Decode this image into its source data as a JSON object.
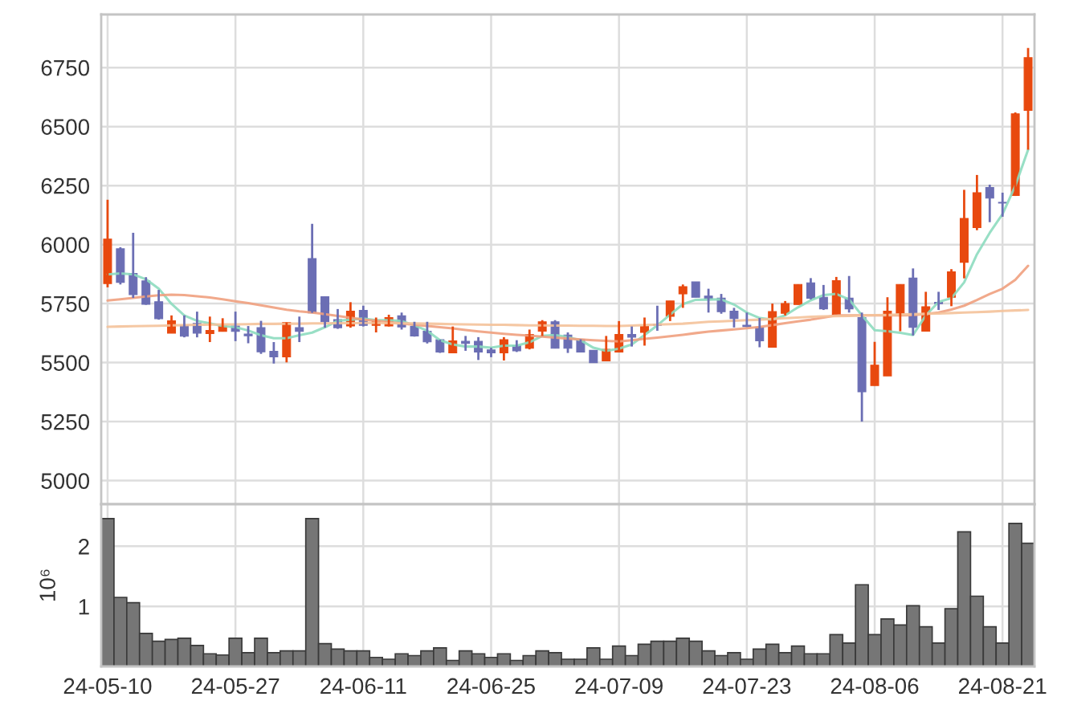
{
  "chart_data": [
    {
      "type": "candlestick",
      "categories": [
        null,
        null,
        null,
        null,
        null,
        null,
        null,
        null,
        null,
        null,
        null,
        null,
        null,
        null,
        null,
        null,
        null,
        null,
        null,
        null,
        null,
        null,
        null,
        null,
        null,
        null,
        null,
        null,
        null,
        null,
        null,
        null,
        null,
        null,
        null,
        null,
        null,
        null,
        null,
        null,
        null,
        null,
        null,
        null,
        null,
        null,
        null,
        null,
        null,
        null,
        null,
        null,
        null,
        null,
        null,
        null,
        null,
        null,
        null,
        null,
        null,
        null,
        null,
        null,
        null,
        null,
        null,
        null,
        null,
        null,
        null,
        null,
        null
      ],
      "ohlc": [
        [
          5835,
          6190,
          5819,
          6023
        ],
        [
          5982,
          5989,
          5831,
          5840
        ],
        [
          5878,
          6050,
          5774,
          5788
        ],
        [
          5846,
          5862,
          5745,
          5747
        ],
        [
          5758,
          5808,
          5682,
          5686
        ],
        [
          5625,
          5700,
          5625,
          5677
        ],
        [
          5657,
          5700,
          5607,
          5612
        ],
        [
          5666,
          5716,
          5607,
          5625
        ],
        [
          5623,
          5695,
          5587,
          5636
        ],
        [
          5632,
          5688,
          5632,
          5657
        ],
        [
          5655,
          5716,
          5591,
          5632
        ],
        [
          5621,
          5655,
          5582,
          5614
        ],
        [
          5648,
          5677,
          5537,
          5546
        ],
        [
          5548,
          5587,
          5496,
          5524
        ],
        [
          5524,
          5670,
          5501,
          5670
        ],
        [
          5648,
          5695,
          5587,
          5632
        ],
        [
          5941,
          6088,
          5711,
          5711
        ],
        [
          5779,
          5779,
          5648,
          5673
        ],
        [
          5682,
          5727,
          5643,
          5648
        ],
        [
          5655,
          5756,
          5648,
          5718
        ],
        [
          5721,
          5741,
          5653,
          5658
        ],
        [
          5658,
          5691,
          5628,
          5676
        ],
        [
          5655,
          5703,
          5653,
          5691
        ],
        [
          5698,
          5712,
          5640,
          5651
        ],
        [
          5653,
          5673,
          5610,
          5613
        ],
        [
          5633,
          5673,
          5581,
          5588
        ],
        [
          5597,
          5597,
          5541,
          5545
        ],
        [
          5541,
          5653,
          5541,
          5592
        ],
        [
          5590,
          5613,
          5550,
          5581
        ],
        [
          5590,
          5608,
          5511,
          5545
        ],
        [
          5554,
          5563,
          5523,
          5541
        ],
        [
          5541,
          5608,
          5509,
          5597
        ],
        [
          5572,
          5595,
          5545,
          5550
        ],
        [
          5561,
          5640,
          5556,
          5619
        ],
        [
          5633,
          5680,
          5613,
          5673
        ],
        [
          5673,
          5680,
          5561,
          5561
        ],
        [
          5617,
          5628,
          5541,
          5561
        ],
        [
          5599,
          5599,
          5545,
          5545
        ],
        [
          5552,
          5552,
          5500,
          5500
        ],
        [
          5507,
          5613,
          5507,
          5556
        ],
        [
          5545,
          5676,
          5545,
          5619
        ],
        [
          5619,
          5653,
          5568,
          5608
        ],
        [
          5628,
          5691,
          5572,
          5653
        ],
        [
          5662,
          5741,
          5635,
          5658
        ],
        [
          5696,
          5761,
          5676,
          5761
        ],
        [
          5791,
          5831,
          5732,
          5822
        ],
        [
          5842,
          5842,
          5777,
          5777
        ],
        [
          5782,
          5813,
          5712,
          5770
        ],
        [
          5773,
          5791,
          5707,
          5716
        ],
        [
          5718,
          5732,
          5649,
          5687
        ],
        [
          5658,
          5712,
          5651,
          5653
        ],
        [
          5649,
          5689,
          5565,
          5592
        ],
        [
          5565,
          5750,
          5565,
          5716
        ],
        [
          5709,
          5761,
          5700,
          5750
        ],
        [
          5746,
          5831,
          5746,
          5831
        ],
        [
          5838,
          5858,
          5768,
          5773
        ],
        [
          5777,
          5829,
          5723,
          5728
        ],
        [
          5705,
          5863,
          5705,
          5847
        ],
        [
          5773,
          5867,
          5712,
          5728
        ],
        [
          5691,
          5712,
          5250,
          5376
        ],
        [
          5403,
          5588,
          5403,
          5489
        ],
        [
          5444,
          5777,
          5444,
          5718
        ],
        [
          5709,
          5831,
          5633,
          5831
        ],
        [
          5858,
          5899,
          5615,
          5649
        ],
        [
          5633,
          5800,
          5633,
          5737
        ],
        [
          5755,
          5800,
          5723,
          5750
        ],
        [
          5777,
          5896,
          5739,
          5885
        ],
        [
          5925,
          6232,
          5857,
          6111
        ],
        [
          6072,
          6295,
          6061,
          6220
        ],
        [
          6242,
          6254,
          6095,
          6197
        ],
        [
          6179,
          6220,
          6118,
          6176
        ],
        [
          6208,
          6560,
          6206,
          6554
        ],
        [
          6569,
          6833,
          6402,
          6792
        ]
      ],
      "colors": [
        "#e8490f",
        "#6b6eb4",
        "#6b6eb4",
        "#6b6eb4",
        "#6b6eb4",
        "#e8490f",
        "#6b6eb4",
        "#6b6eb4",
        "#e8490f",
        "#e8490f",
        "#6b6eb4",
        "#6b6eb4",
        "#6b6eb4",
        "#6b6eb4",
        "#e8490f",
        "#6b6eb4",
        "#6b6eb4",
        "#6b6eb4",
        "#6b6eb4",
        "#e8490f",
        "#6b6eb4",
        "#e8490f",
        "#e8490f",
        "#6b6eb4",
        "#6b6eb4",
        "#6b6eb4",
        "#6b6eb4",
        "#e8490f",
        "#6b6eb4",
        "#6b6eb4",
        "#6b6eb4",
        "#e8490f",
        "#6b6eb4",
        "#e8490f",
        "#e8490f",
        "#6b6eb4",
        "#6b6eb4",
        "#6b6eb4",
        "#6b6eb4",
        "#e8490f",
        "#e8490f",
        "#6b6eb4",
        "#e8490f",
        "#6b6eb4",
        "#e8490f",
        "#e8490f",
        "#6b6eb4",
        "#6b6eb4",
        "#6b6eb4",
        "#6b6eb4",
        "#6b6eb4",
        "#6b6eb4",
        "#e8490f",
        "#e8490f",
        "#e8490f",
        "#6b6eb4",
        "#6b6eb4",
        "#e8490f",
        "#6b6eb4",
        "#6b6eb4",
        "#e8490f",
        "#e8490f",
        "#e8490f",
        "#6b6eb4",
        "#e8490f",
        "#6b6eb4",
        "#e8490f",
        "#e8490f",
        "#e8490f",
        "#6b6eb4",
        "#6b6eb4",
        "#e8490f",
        "#e8490f"
      ],
      "series": [
        {
          "type": "line",
          "color": "#8ddbbf",
          "values": [
            5874,
            5878,
            5874,
            5853,
            5813,
            5749,
            5700,
            5677,
            5666,
            5655,
            5650,
            5636,
            5616,
            5603,
            5603,
            5616,
            5627,
            5650,
            5677,
            5682,
            5687,
            5680,
            5680,
            5676,
            5658,
            5635,
            5595,
            5577,
            5568,
            5568,
            5563,
            5572,
            5572,
            5586,
            5613,
            5617,
            5608,
            5595,
            5563,
            5550,
            5559,
            5577,
            5617,
            5658,
            5703,
            5748,
            5766,
            5767,
            5768,
            5746,
            5712,
            5689,
            5682,
            5700,
            5734,
            5764,
            5786,
            5791,
            5768,
            5700,
            5637,
            5633,
            5626,
            5617,
            5700,
            5757,
            5773,
            5840,
            5959,
            6050,
            6129,
            6249,
            6402
          ]
        },
        {
          "type": "line",
          "color": "#f0a07e",
          "values": [
            5763,
            5768,
            5774,
            5780,
            5785,
            5788,
            5786,
            5781,
            5776,
            5768,
            5760,
            5752,
            5743,
            5733,
            5724,
            5717,
            5712,
            5705,
            5698,
            5690,
            5682,
            5677,
            5671,
            5666,
            5660,
            5655,
            5650,
            5645,
            5638,
            5632,
            5627,
            5622,
            5618,
            5614,
            5610,
            5606,
            5602,
            5598,
            5595,
            5592,
            5590,
            5595,
            5601,
            5606,
            5612,
            5618,
            5625,
            5631,
            5636,
            5641,
            5646,
            5651,
            5659,
            5667,
            5675,
            5682,
            5691,
            5700,
            5700,
            5700,
            5700,
            5700,
            5700,
            5701,
            5706,
            5712,
            5725,
            5741,
            5765,
            5791,
            5813,
            5851,
            5910
          ]
        },
        {
          "type": "line",
          "color": "#f4c29a",
          "values": [
            5652,
            5653,
            5654,
            5655,
            5656,
            5658,
            5659,
            5660,
            5661,
            5662,
            5662,
            5663,
            5664,
            5664,
            5665,
            5665,
            5666,
            5666,
            5667,
            5667,
            5668,
            5668,
            5667,
            5666,
            5666,
            5665,
            5664,
            5663,
            5662,
            5661,
            5660,
            5660,
            5659,
            5658,
            5658,
            5657,
            5657,
            5656,
            5656,
            5655,
            5655,
            5657,
            5659,
            5661,
            5663,
            5665,
            5669,
            5673,
            5675,
            5677,
            5680,
            5682,
            5685,
            5688,
            5691,
            5694,
            5696,
            5697,
            5698,
            5700,
            5701,
            5702,
            5704,
            5705,
            5707,
            5708,
            5710,
            5712,
            5714,
            5716,
            5719,
            5721,
            5723
          ]
        }
      ],
      "ylim": [
        4900,
        6975
      ],
      "yticks": [
        5000,
        5250,
        5500,
        5750,
        6000,
        6250,
        6500,
        6750
      ],
      "grid": true
    },
    {
      "type": "bar",
      "categories": [
        "24-05-10",
        null,
        null,
        null,
        null,
        null,
        null,
        null,
        null,
        null,
        "24-05-27",
        null,
        null,
        null,
        null,
        null,
        null,
        null,
        null,
        null,
        "24-06-11",
        null,
        null,
        null,
        null,
        null,
        null,
        null,
        null,
        null,
        "24-06-25",
        null,
        null,
        null,
        null,
        null,
        null,
        null,
        null,
        null,
        "24-07-09",
        null,
        null,
        null,
        null,
        null,
        null,
        null,
        null,
        null,
        "24-07-23",
        null,
        null,
        null,
        null,
        null,
        null,
        null,
        null,
        null,
        "24-08-06",
        null,
        null,
        null,
        null,
        null,
        null,
        null,
        null,
        null,
        "24-08-21",
        null,
        null
      ],
      "values": [
        2.46,
        1.15,
        1.06,
        0.55,
        0.42,
        0.45,
        0.47,
        0.35,
        0.21,
        0.19,
        0.47,
        0.23,
        0.47,
        0.23,
        0.26,
        0.26,
        2.46,
        0.38,
        0.29,
        0.26,
        0.26,
        0.15,
        0.12,
        0.21,
        0.18,
        0.26,
        0.31,
        0.1,
        0.26,
        0.21,
        0.15,
        0.21,
        0.1,
        0.18,
        0.26,
        0.23,
        0.12,
        0.12,
        0.31,
        0.12,
        0.34,
        0.18,
        0.37,
        0.42,
        0.42,
        0.47,
        0.42,
        0.26,
        0.18,
        0.23,
        0.12,
        0.29,
        0.37,
        0.23,
        0.34,
        0.21,
        0.21,
        0.53,
        0.39,
        1.36,
        0.53,
        0.79,
        0.69,
        1.01,
        0.66,
        0.39,
        0.96,
        2.24,
        1.17,
        0.66,
        0.39,
        2.38,
        2.05
      ],
      "color": "#767676",
      "ylim": [
        0,
        2.7
      ],
      "yticks": [
        1,
        2
      ],
      "ylabel": "10⁶",
      "grid": true
    }
  ]
}
